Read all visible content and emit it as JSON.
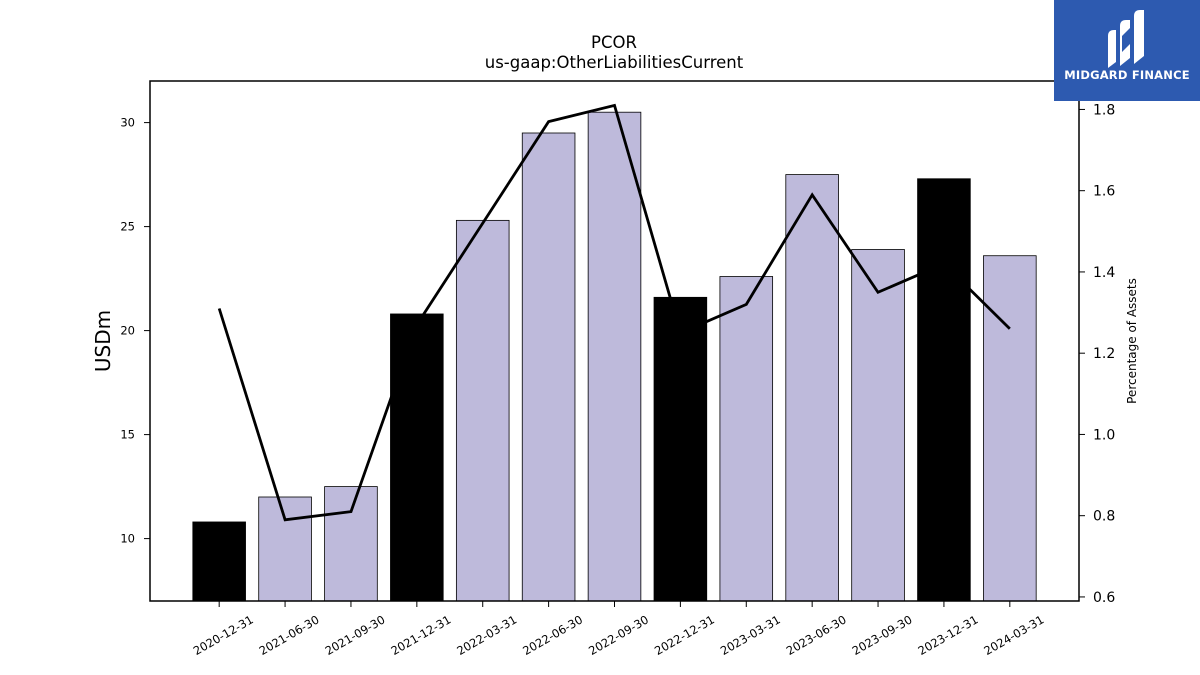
{
  "chart_data": {
    "type": "bar",
    "title": "PCOR",
    "subtitle": "us-gaap:OtherLiabilitiesCurrent",
    "ylabel": "USDm",
    "y2label": "Percentage of Assets",
    "categories": [
      "2020-12-31",
      "2021-06-30",
      "2021-09-30",
      "2021-12-31",
      "2022-03-31",
      "2022-06-30",
      "2022-09-30",
      "2022-12-31",
      "2023-03-31",
      "2023-06-30",
      "2023-09-30",
      "2023-12-31",
      "2024-03-31"
    ],
    "series": [
      {
        "values": [
          10.8,
          12.0,
          12.5,
          20.8,
          25.3,
          29.5,
          30.5,
          21.6,
          22.6,
          27.5,
          23.9,
          27.3,
          23.6
        ],
        "kind": "bar",
        "bar_colors": [
          "#000000",
          "#bebadb",
          "#bebadb",
          "#000000",
          "#bebadb",
          "#bebadb",
          "#bebadb",
          "#000000",
          "#bebadb",
          "#bebadb",
          "#bebadb",
          "#000000",
          "#bebadb"
        ]
      },
      {
        "values": [
          1.31,
          0.79,
          0.81,
          1.27,
          1.52,
          1.77,
          1.81,
          1.25,
          1.32,
          1.59,
          1.35,
          1.42,
          1.26
        ],
        "kind": "line",
        "axis": "right",
        "color": "#000000"
      }
    ],
    "ylim": [
      7,
      32
    ],
    "y2lim": [
      0.59,
      1.87
    ],
    "yticks": [
      10,
      15,
      20,
      25,
      30
    ],
    "y2ticks": [
      0.6,
      0.8,
      1.0,
      1.2,
      1.4,
      1.6,
      1.8
    ],
    "y2tick_labels": [
      "0.6",
      "0.8",
      "1.0",
      "1.2",
      "1.4",
      "1.6",
      "1.8"
    ],
    "grid": false
  },
  "logo": {
    "text": "MIDGARD FINANCE"
  }
}
